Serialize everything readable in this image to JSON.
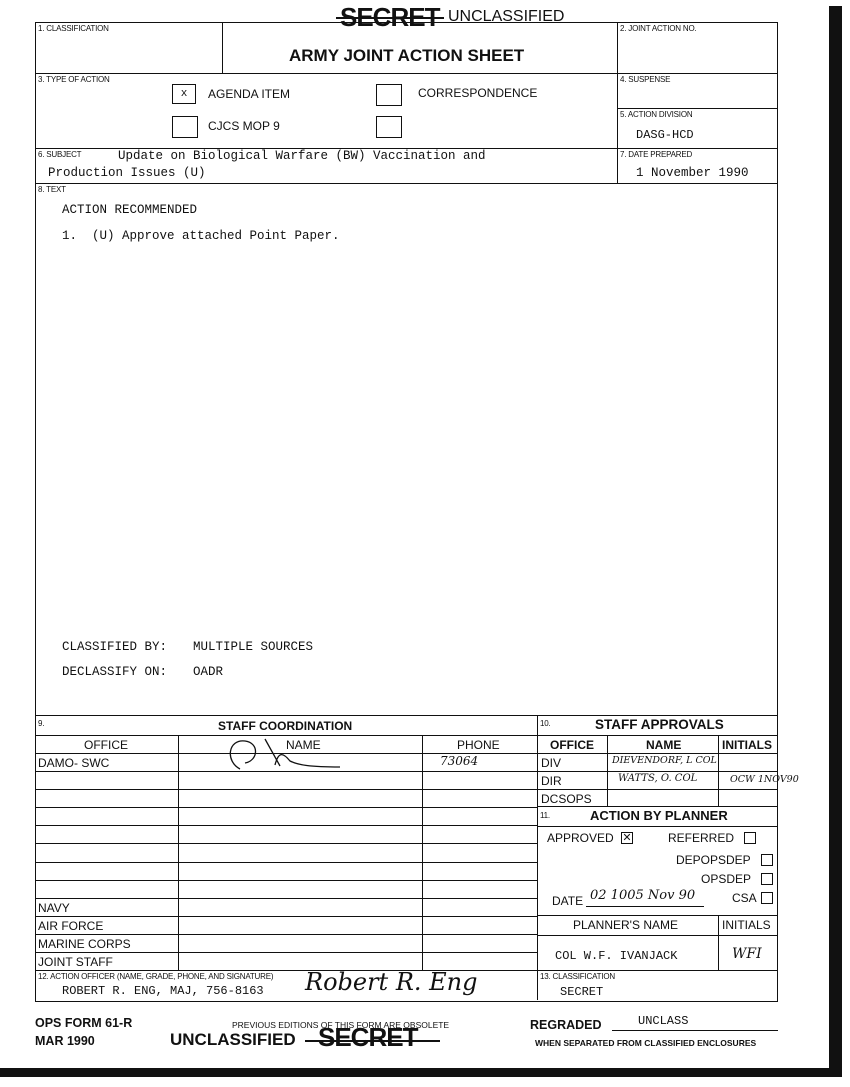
{
  "header": {
    "stamp_crossed": "SECRET",
    "stamp": "UNCLASSIFIED",
    "title": "ARMY JOINT ACTION SHEET"
  },
  "fields": {
    "classification_label": "1. CLASSIFICATION",
    "joint_action_no_label": "2. JOINT ACTION NO.",
    "type_of_action_label": "3. TYPE OF ACTION",
    "suspense_label": "4. SUSPENSE",
    "action_division_label": "5. ACTION DIVISION",
    "action_division_value": "DASG-HCD",
    "subject_label": "6. SUBJECT",
    "subject_line1": "Update on Biological Warfare (BW) Vaccination and",
    "subject_line2": "Production Issues (U)",
    "date_prepared_label": "7. DATE PREPARED",
    "date_prepared_value": "1 November 1990",
    "text_label": "8. TEXT"
  },
  "type_of_action": [
    {
      "label": "AGENDA ITEM",
      "checked": true,
      "mark": "x"
    },
    {
      "label": "CORRESPONDENCE",
      "checked": false
    },
    {
      "label": "CJCS MOP 9",
      "checked": false
    },
    {
      "label": "",
      "checked": false
    }
  ],
  "text": {
    "heading": "ACTION RECOMMENDED",
    "item1": "1.  (U) Approve attached Point Paper.",
    "classified_by_label": "CLASSIFIED BY:",
    "classified_by_value": "MULTIPLE SOURCES",
    "declassify_label": "DECLASSIFY ON:",
    "declassify_value": "OADR"
  },
  "staff_coordination": {
    "number": "9.",
    "title": "STAFF COORDINATION",
    "columns": [
      "OFFICE",
      "NAME",
      "PHONE"
    ],
    "rows": [
      {
        "office": "DAMO- SWC",
        "name": "(signature)",
        "phone": "73064"
      },
      {
        "office": "",
        "name": "",
        "phone": ""
      },
      {
        "office": "",
        "name": "",
        "phone": ""
      },
      {
        "office": "",
        "name": "",
        "phone": ""
      },
      {
        "office": "",
        "name": "",
        "phone": ""
      },
      {
        "office": "",
        "name": "",
        "phone": ""
      },
      {
        "office": "",
        "name": "",
        "phone": ""
      },
      {
        "office": "",
        "name": "",
        "phone": ""
      },
      {
        "office": "NAVY",
        "name": "",
        "phone": ""
      },
      {
        "office": "AIR FORCE",
        "name": "",
        "phone": ""
      },
      {
        "office": "MARINE CORPS",
        "name": "",
        "phone": ""
      },
      {
        "office": "JOINT STAFF",
        "name": "",
        "phone": ""
      }
    ]
  },
  "staff_approvals": {
    "number": "10.",
    "title": "STAFF APPROVALS",
    "columns": [
      "OFFICE",
      "NAME",
      "INITIALS"
    ],
    "rows": [
      {
        "office": "DIV",
        "name": "DIEVENDORF, L COL",
        "initials": ""
      },
      {
        "office": "DIR",
        "name": "WATTS, O. COL",
        "initials": "OCW 1NOV90"
      },
      {
        "office": "DCSOPS",
        "name": "",
        "initials": ""
      }
    ]
  },
  "action_by_planner": {
    "number": "11.",
    "title": "ACTION BY PLANNER",
    "approved_label": "APPROVED",
    "approved_checked": true,
    "referred_label": "REFERRED",
    "referred_checked": false,
    "options": [
      {
        "label": "DEPOPSDEP",
        "checked": false
      },
      {
        "label": "OPSDEP",
        "checked": false
      },
      {
        "label": "CSA",
        "checked": false
      }
    ],
    "date_label": "DATE",
    "date_value": "02 1005 Nov 90",
    "planners_name_label": "PLANNER'S NAME",
    "initials_label": "INITIALS",
    "planner_name": "COL W.F. IVANJACK",
    "planner_initials": "WFI"
  },
  "action_officer": {
    "label": "12. ACTION OFFICER (NAME, GRADE, PHONE, AND SIGNATURE)",
    "value": "ROBERT R. ENG, MAJ, 756-8163",
    "signature": "Robert R. Eng"
  },
  "classification_13": {
    "label": "13. CLASSIFICATION",
    "value": "SECRET"
  },
  "footer": {
    "form_no": "OPS FORM 61-R",
    "form_date": "MAR 1990",
    "editions_note": "PREVIOUS EDITIONS OF THIS FORM ARE OBSOLETE",
    "stamp": "UNCLASSIFIED",
    "stamp_crossed": "SECRET",
    "regraded_label": "REGRADED",
    "regraded_value": "UNCLASS",
    "separated_note": "WHEN SEPARATED FROM CLASSIFIED ENCLOSURES"
  }
}
